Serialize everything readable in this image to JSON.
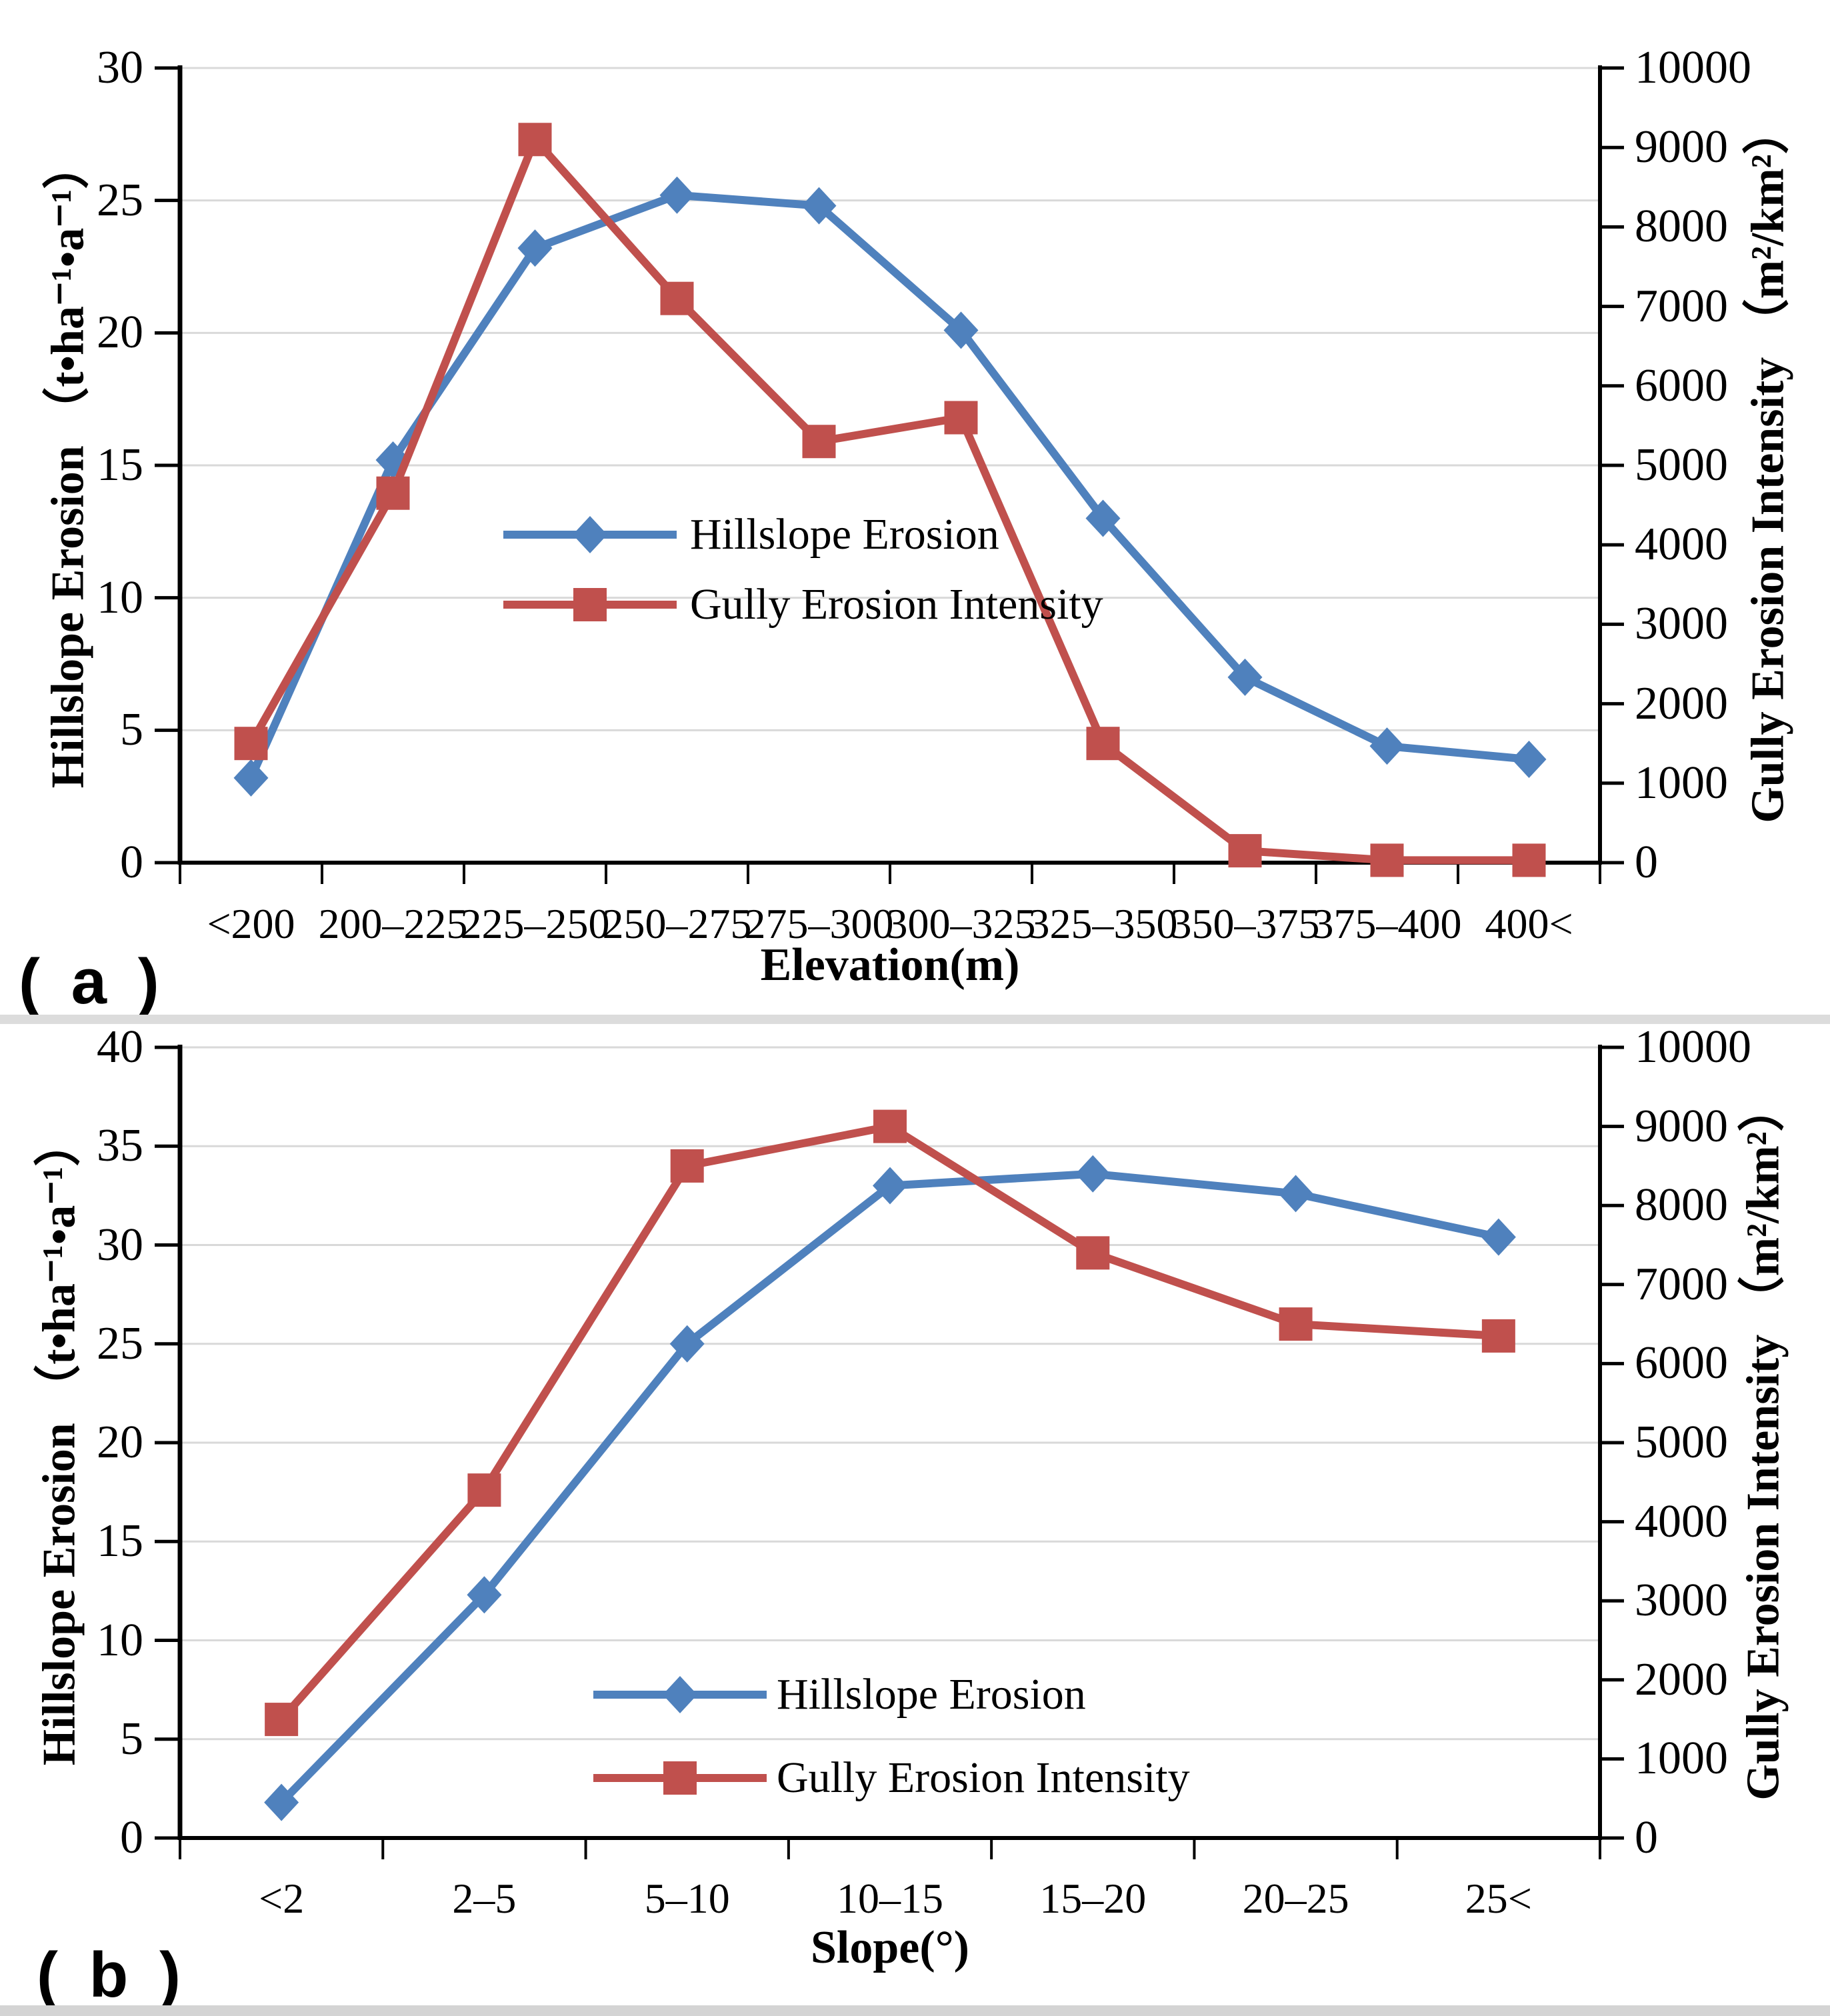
{
  "figure": {
    "background": "#ffffff",
    "grid_color": "#D9D9D9",
    "axis_color": "#000000",
    "divider_color": "#DCDCDC",
    "accent_blue": "#4F81BD",
    "accent_red": "#C0504D"
  },
  "chart_data": [
    {
      "type": "line",
      "panel_label": "( a )",
      "categories": [
        "<200",
        "200–225",
        "225–250",
        "250–275",
        "275–300",
        "300–325",
        "325–350",
        "350–375",
        "375–400",
        "400<"
      ],
      "xlabel": "Elevation(m)",
      "ylabel_left": "Hillslope Erosion （t•ha⁻¹•a⁻¹）",
      "ylabel_right": "Gully Erosion Intensity （m²/km²）",
      "left_axis": {
        "min": 0,
        "max": 30,
        "step": 5,
        "ticks": [
          "30",
          "25",
          "20",
          "15",
          "10",
          "5",
          "0"
        ]
      },
      "right_axis": {
        "min": 0,
        "max": 10000,
        "step": 1000,
        "ticks": [
          "10000",
          "9000",
          "8000",
          "7000",
          "6000",
          "5000",
          "4000",
          "3000",
          "2000",
          "1000",
          "0"
        ]
      },
      "grid": true,
      "legend_position": "inside-center",
      "series": [
        {
          "name": "Hillslope Erosion",
          "axis": "left",
          "color": "#4F81BD",
          "marker": "diamond",
          "values": [
            3.2,
            15.2,
            23.2,
            25.2,
            24.8,
            20.1,
            13.0,
            7.0,
            4.4,
            3.9
          ]
        },
        {
          "name": "Gully Erosion Intensity",
          "axis": "right",
          "color": "#C0504D",
          "marker": "square",
          "values": [
            1500,
            4650,
            9100,
            7100,
            5300,
            5600,
            1500,
            150,
            30,
            30
          ]
        }
      ]
    },
    {
      "type": "line",
      "panel_label": "( b )",
      "categories": [
        "<2",
        "2–5",
        "5–10",
        "10–15",
        "15–20",
        "20–25",
        "25<"
      ],
      "xlabel": "Slope(°)",
      "ylabel_left": "Hillslope Erosion （t•ha⁻¹•a⁻¹）",
      "ylabel_right": "Gully Erosion Intensity （m²/km²）",
      "left_axis": {
        "min": 0,
        "max": 40,
        "step": 5,
        "ticks": [
          "40",
          "35",
          "30",
          "25",
          "20",
          "15",
          "10",
          "5",
          "0"
        ]
      },
      "right_axis": {
        "min": 0,
        "max": 10000,
        "step": 1000,
        "ticks": [
          "10000",
          "9000",
          "8000",
          "7000",
          "6000",
          "5000",
          "4000",
          "3000",
          "2000",
          "1000",
          "0"
        ]
      },
      "grid": true,
      "legend_position": "inside-center",
      "series": [
        {
          "name": "Hillslope Erosion",
          "axis": "left",
          "color": "#4F81BD",
          "marker": "diamond",
          "values": [
            1.8,
            12.3,
            25.0,
            33.0,
            33.6,
            32.6,
            30.4
          ]
        },
        {
          "name": "Gully Erosion Intensity",
          "axis": "right",
          "color": "#C0504D",
          "marker": "square",
          "values": [
            1500,
            4400,
            8500,
            9000,
            7400,
            6500,
            6350
          ]
        }
      ]
    }
  ]
}
